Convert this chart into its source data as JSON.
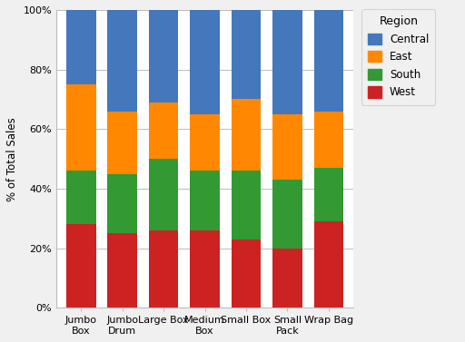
{
  "categories": [
    "Jumbo\nBox",
    "Jumbo\nDrum",
    "Large Box",
    "Medium\nBox",
    "Small Box",
    "Small\nPack",
    "Wrap Bag"
  ],
  "regions": [
    "West",
    "South",
    "East",
    "Central"
  ],
  "colors": {
    "West": "#cc2222",
    "South": "#339933",
    "East": "#ff8800",
    "Central": "#4477bb"
  },
  "values": {
    "West": [
      0.28,
      0.25,
      0.26,
      0.26,
      0.23,
      0.2,
      0.29
    ],
    "South": [
      0.18,
      0.2,
      0.24,
      0.2,
      0.23,
      0.23,
      0.18
    ],
    "East": [
      0.29,
      0.21,
      0.19,
      0.19,
      0.24,
      0.22,
      0.19
    ],
    "Central": [
      0.25,
      0.34,
      0.31,
      0.35,
      0.3,
      0.35,
      0.34
    ]
  },
  "ylabel": "% of Total Sales",
  "legend_title": "Region",
  "legend_labels": [
    "Central",
    "East",
    "South",
    "West"
  ],
  "legend_colors": [
    "#4477bb",
    "#ff8800",
    "#339933",
    "#cc2222"
  ],
  "background_color": "#f0f0f0",
  "plot_background": "#ffffff",
  "yticks": [
    0.0,
    0.2,
    0.4,
    0.6,
    0.8,
    1.0
  ],
  "ytick_labels": [
    "0%",
    "20%",
    "40%",
    "60%",
    "80%",
    "100%"
  ]
}
